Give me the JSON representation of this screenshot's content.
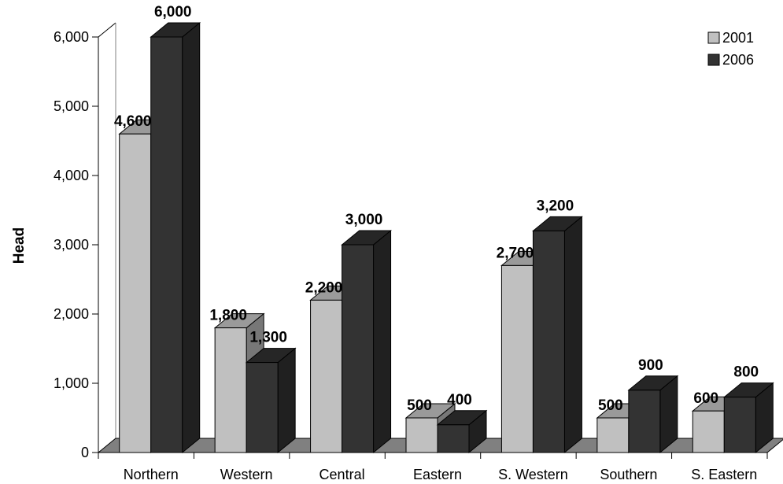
{
  "chart_data": {
    "type": "bar",
    "title": "",
    "xlabel": "",
    "ylabel": "Head",
    "categories": [
      "Northern",
      "Western",
      "Central",
      "Eastern",
      "S. Western",
      "Southern",
      "S. Eastern"
    ],
    "series": [
      {
        "name": "2001",
        "values": [
          4600,
          1800,
          2200,
          500,
          2700,
          500,
          600
        ],
        "color": "#c0c0c0"
      },
      {
        "name": "2006",
        "values": [
          6000,
          1300,
          3000,
          400,
          3200,
          900,
          800
        ],
        "color": "#333333"
      }
    ],
    "ylim": [
      0,
      6000
    ],
    "y_ticks": [
      0,
      1000,
      2000,
      3000,
      4000,
      5000,
      6000
    ],
    "y_tick_labels": [
      "0",
      "1,000",
      "2,000",
      "3,000",
      "4,000",
      "5,000",
      "6,000"
    ],
    "data_labels": [
      [
        "4,600",
        "1,800",
        "2,200",
        "500",
        "2,700",
        "500",
        "600"
      ],
      [
        "6,000",
        "1,300",
        "3,000",
        "400",
        "3,200",
        "900",
        "800"
      ]
    ],
    "legend_position": "top-right",
    "grid": false,
    "style": "3d-clustered-column"
  }
}
